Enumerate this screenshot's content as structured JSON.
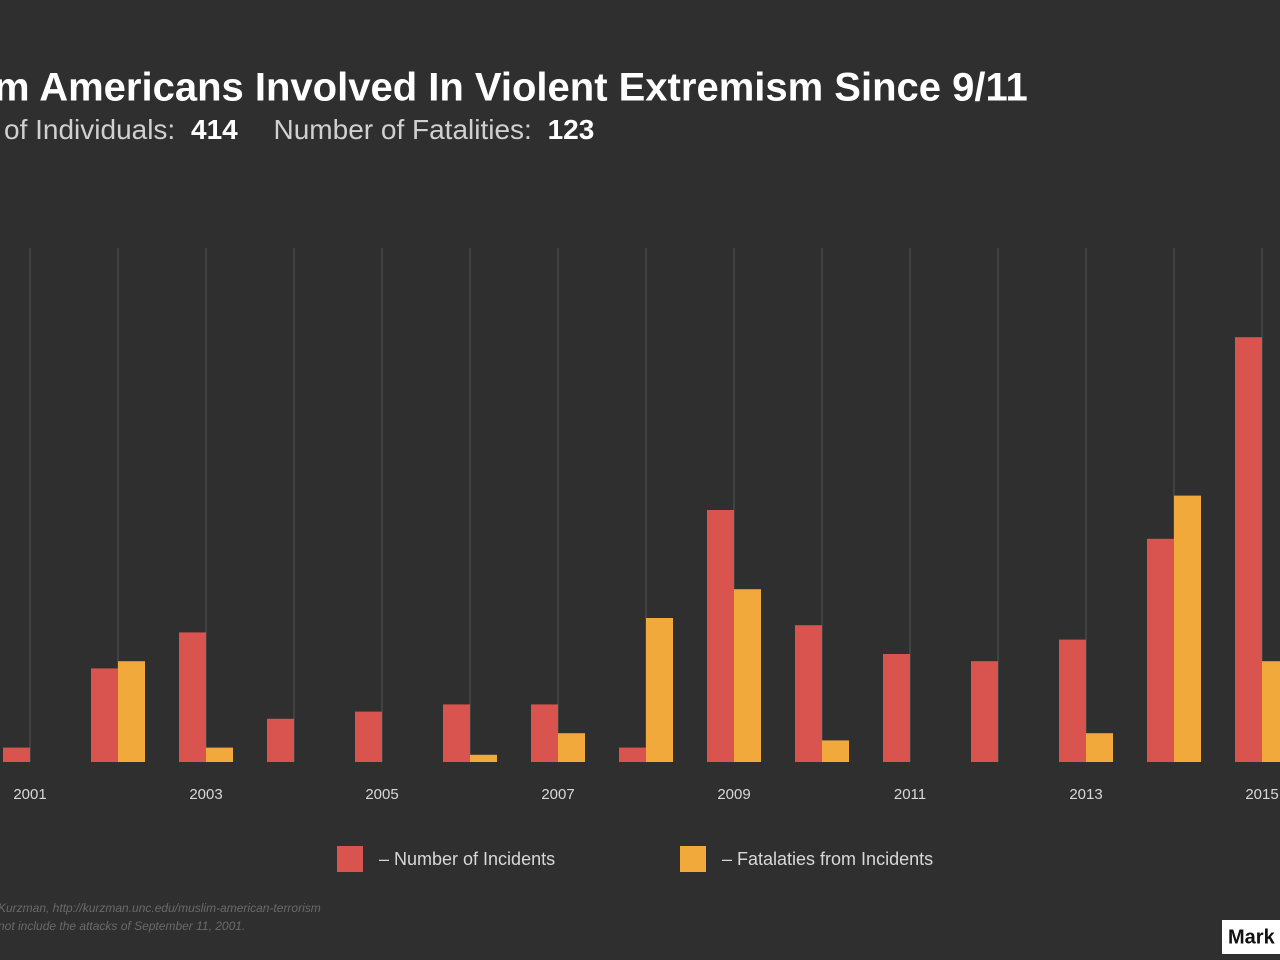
{
  "chart_data": {
    "type": "bar",
    "title": "m Americans Involved In Violent Extremism Since 9/11",
    "subtitle": {
      "individuals_label": "of Individuals:",
      "individuals_value": "414",
      "fatalities_label": "Number of Fatalities:",
      "fatalities_value": "123"
    },
    "categories": [
      "2001",
      null,
      "2003",
      null,
      "2005",
      null,
      "2007",
      null,
      "2009",
      null,
      "2011",
      null,
      "2013",
      null,
      "2015"
    ],
    "series": [
      {
        "name": "– Number of Incidents",
        "color": "#d9534f",
        "values": [
          2,
          13,
          18,
          6,
          7,
          8,
          8,
          2,
          35,
          19,
          15,
          14,
          17,
          31,
          59
        ]
      },
      {
        "name": "– Fatalaties from Incidents",
        "color": "#f0a93a",
        "values": [
          0,
          14,
          2,
          0,
          0,
          1,
          4,
          20,
          24,
          3,
          0,
          0,
          4,
          37,
          14
        ]
      }
    ],
    "ylim": [
      0,
      70
    ],
    "grid": true,
    "source": [
      "Kurzman, http://kurzman.unc.edu/muslim-american-terrorism",
      "not include the attacks of September 11, 2001."
    ],
    "brand": "Mark"
  }
}
